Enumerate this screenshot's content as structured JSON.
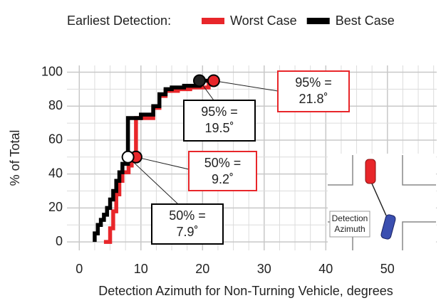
{
  "chart_data": {
    "type": "line",
    "step": true,
    "legend_title": "Earliest Detection:",
    "legend_position": "top",
    "xlabel": "Detection Azimuth for Non-Turning Vehicle, degrees",
    "ylabel": "% of Total",
    "xlim": [
      -2,
      58
    ],
    "ylim": [
      -5,
      104
    ],
    "xticks": [
      0,
      10,
      20,
      30,
      40,
      50
    ],
    "yticks": [
      0,
      20,
      40,
      60,
      80,
      100
    ],
    "grid": true,
    "series": [
      {
        "name": "Worst Case",
        "color": "#e8262a",
        "x": [
          4,
          5,
          5,
          5.5,
          5.5,
          6,
          6,
          6.5,
          6.5,
          7,
          7,
          8,
          8,
          8.5,
          8.5,
          9.2,
          9.2,
          12,
          12,
          13,
          13,
          14,
          14,
          16,
          16,
          18,
          18,
          21,
          21,
          21.8,
          21.8
        ],
        "y": [
          0,
          0,
          8,
          8,
          18,
          18,
          28,
          28,
          36,
          36,
          41,
          41,
          45,
          45,
          48,
          48,
          73,
          73,
          79,
          79,
          86,
          86,
          89,
          89,
          90,
          90,
          91,
          91,
          93,
          93,
          95
        ]
      },
      {
        "name": "Best Case",
        "color": "#000000",
        "x": [
          2.5,
          2.5,
          3,
          3,
          3.5,
          3.5,
          4,
          4,
          4.5,
          4.5,
          5,
          5,
          5.5,
          5.5,
          6,
          6,
          6.5,
          6.5,
          7,
          7,
          7.9,
          7.9,
          10,
          10,
          12,
          12,
          13,
          13,
          14,
          14,
          15,
          15,
          17,
          17,
          19.5,
          19.5,
          21
        ],
        "y": [
          0,
          5,
          5,
          10,
          10,
          13,
          13,
          16,
          16,
          20,
          20,
          25,
          25,
          30,
          30,
          36,
          36,
          41,
          41,
          46,
          46,
          73,
          73,
          75,
          75,
          80,
          80,
          87,
          87,
          90,
          90,
          91,
          91,
          92,
          92,
          95,
          95
        ]
      }
    ],
    "annotations": [
      {
        "x": 21.8,
        "y": 95,
        "lines": [
          "95% =",
          "21.8˚"
        ],
        "color": "#e8262a",
        "marker": "#e8262a"
      },
      {
        "x": 19.5,
        "y": 95,
        "lines": [
          "95% =",
          "19.5˚"
        ],
        "color": "#000000",
        "marker": "#222222"
      },
      {
        "x": 9.2,
        "y": 50,
        "lines": [
          "50% =",
          "9.2˚"
        ],
        "color": "#e8262a",
        "marker": "#e8262a"
      },
      {
        "x": 7.9,
        "y": 50,
        "lines": [
          "50% =",
          "7.9˚"
        ],
        "color": "#000000",
        "marker": "#ffffff"
      }
    ],
    "inset_labels": [
      "Detection",
      "Azimuth"
    ]
  }
}
